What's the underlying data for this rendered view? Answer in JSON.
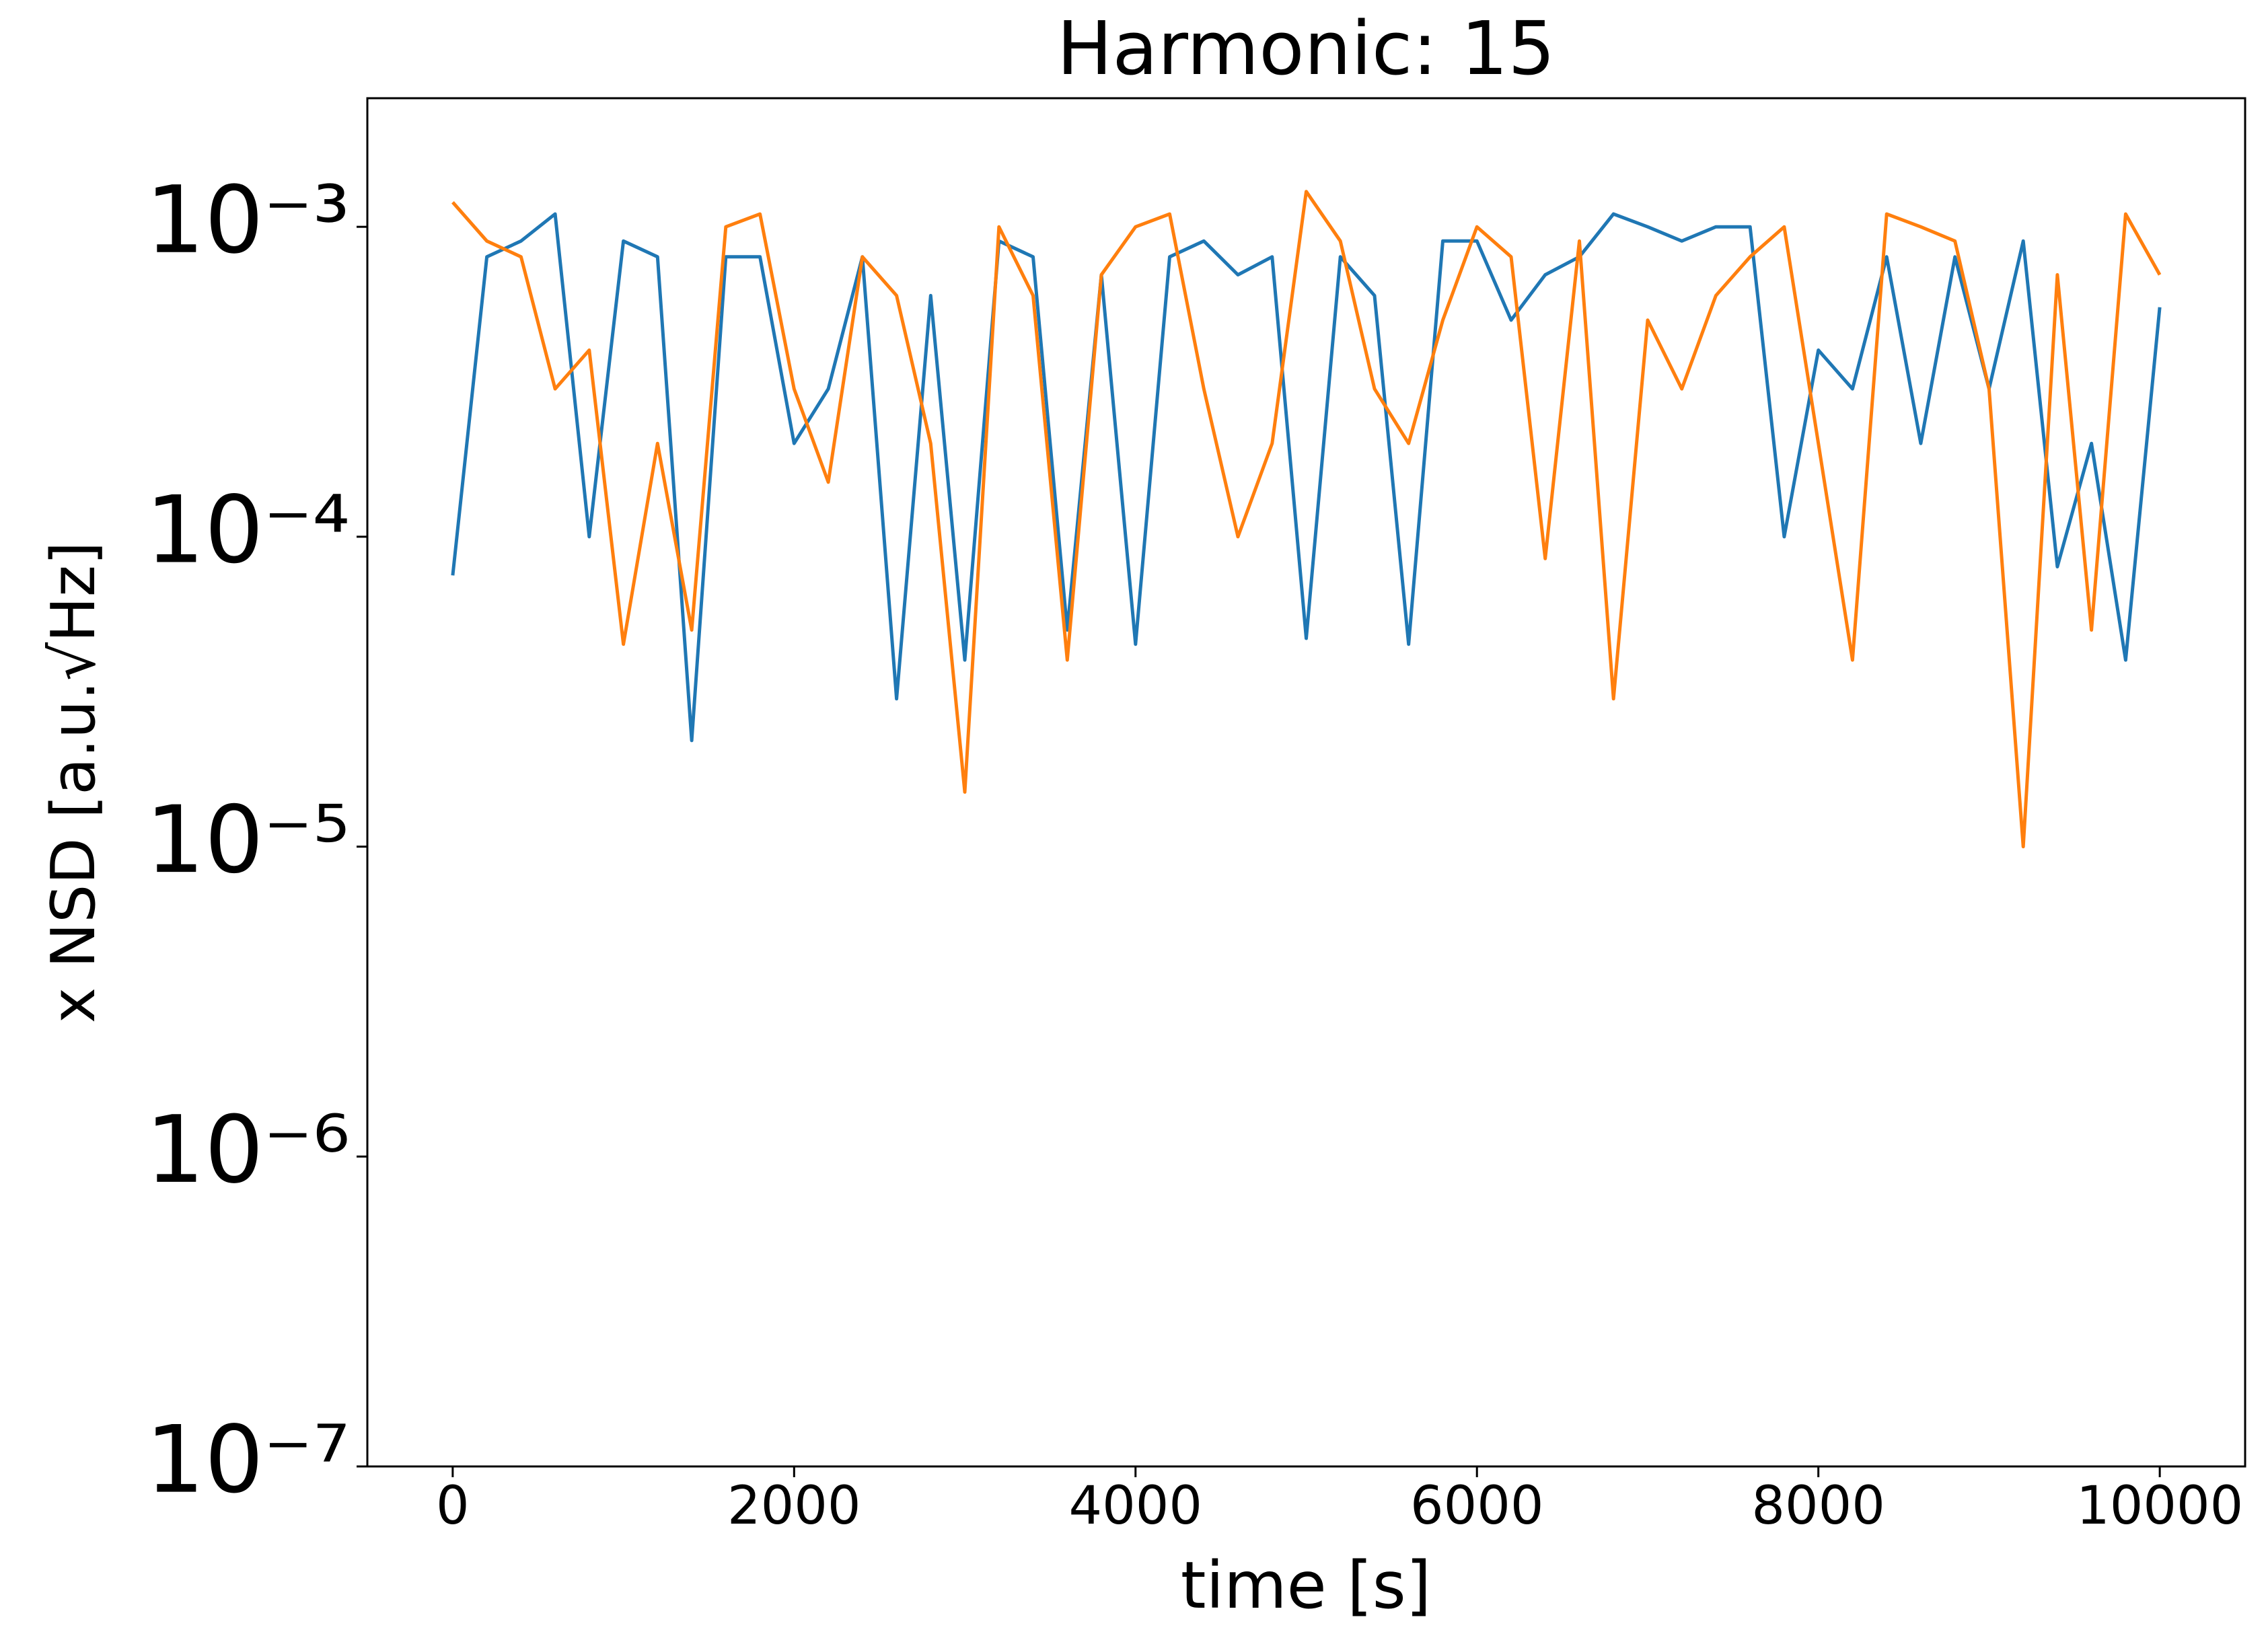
{
  "chart_data": {
    "type": "line",
    "title": "Harmonic: 15",
    "x_label": "time [s]",
    "y_label": "x NSD [a.u.√Hz]",
    "log_y": true,
    "grid": false,
    "xlim": [
      -500,
      10500
    ],
    "ylim": [
      1e-07,
      0.0026
    ],
    "xticks": [
      0,
      2000,
      4000,
      6000,
      8000,
      10000
    ],
    "yticks": [
      {
        "value": 1e-07,
        "label": "10⁻⁷"
      },
      {
        "value": 1e-06,
        "label": "10⁻⁶"
      },
      {
        "value": 1e-05,
        "label": "10⁻⁵"
      },
      {
        "value": 0.0001,
        "label": "10⁻⁴"
      },
      {
        "value": 0.001,
        "label": "10⁻³"
      }
    ],
    "x": [
      0,
      200,
      400,
      600,
      800,
      1000,
      1200,
      1400,
      1600,
      1800,
      2000,
      2200,
      2400,
      2600,
      2800,
      3000,
      3200,
      3400,
      3600,
      3800,
      4000,
      4200,
      4400,
      4600,
      4800,
      5000,
      5200,
      5400,
      5600,
      5800,
      6000,
      6200,
      6400,
      6600,
      6800,
      7000,
      7200,
      7400,
      7600,
      7800,
      8000,
      8200,
      8400,
      8600,
      8800,
      9000,
      9200,
      9400,
      9600,
      9800,
      10000
    ],
    "series": [
      {
        "color": "#1f77b4",
        "values": [
          7.5e-05,
          0.0008,
          0.0009,
          0.0011,
          0.0001,
          0.0009,
          0.0008,
          2.2e-05,
          0.0008,
          0.0008,
          0.0002,
          0.0003,
          0.0008,
          3e-05,
          0.0006,
          4e-05,
          0.0009,
          0.0008,
          5e-05,
          0.0007,
          4.5e-05,
          0.0008,
          0.0009,
          0.0007,
          0.0008,
          4.7e-05,
          0.0008,
          0.0006,
          4.5e-05,
          0.0009,
          0.0009,
          0.0005,
          0.0007,
          0.0008,
          0.0011,
          0.001,
          0.0009,
          0.001,
          0.001,
          0.0001,
          0.0004,
          0.0003,
          0.0008,
          0.0002,
          0.0008,
          0.0003,
          0.0009,
          8e-05,
          0.0002,
          4e-05,
          0.00055
        ]
      },
      {
        "color": "#ff7f0e",
        "values": [
          0.0012,
          0.0009,
          0.0008,
          0.0003,
          0.0004,
          4.5e-05,
          0.0002,
          5e-05,
          0.001,
          0.0011,
          0.0003,
          0.00015,
          0.0008,
          0.0006,
          0.0002,
          1.5e-05,
          0.001,
          0.0006,
          4e-05,
          0.0007,
          0.001,
          0.0011,
          0.0003,
          0.0001,
          0.0002,
          0.0013,
          0.0009,
          0.0003,
          0.0002,
          0.0005,
          0.001,
          0.0008,
          8.5e-05,
          0.0009,
          3e-05,
          0.0005,
          0.0003,
          0.0006,
          0.0008,
          0.001,
          0.0002,
          4e-05,
          0.0011,
          0.001,
          0.0009,
          0.0003,
          1e-05,
          0.0007,
          5e-05,
          0.0011,
          0.0007
        ]
      }
    ]
  }
}
